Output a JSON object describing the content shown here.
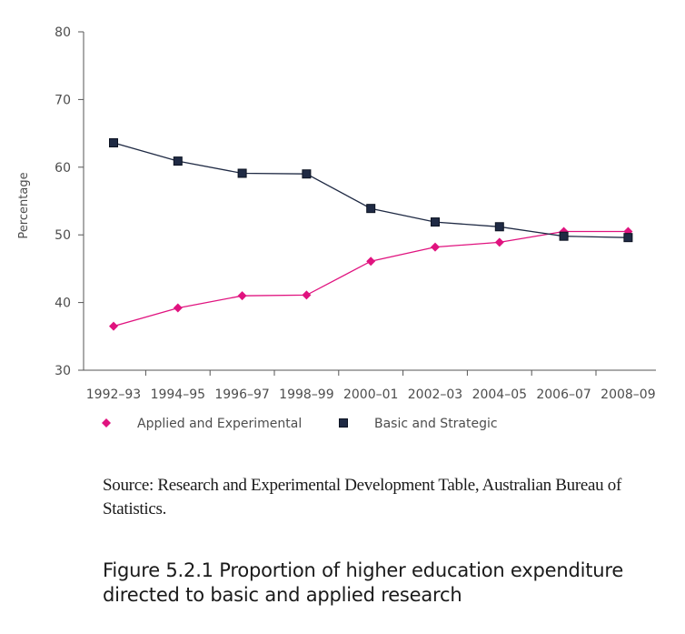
{
  "chart_data": {
    "type": "line",
    "title": "",
    "xlabel": "",
    "ylabel": "Percentage",
    "ylim": [
      30,
      80
    ],
    "yticks": [
      30,
      40,
      50,
      60,
      70,
      80
    ],
    "categories": [
      "1992–93",
      "1994–95",
      "1996–97",
      "1998–99",
      "2000–01",
      "2002–03",
      "2004–05",
      "2006–07",
      "2008–09"
    ],
    "series": [
      {
        "name": "Applied and Experimental",
        "color": "#e0137f",
        "marker": "diamond",
        "values": [
          36.5,
          39.2,
          41.0,
          41.1,
          46.1,
          48.2,
          48.9,
          50.5,
          50.5
        ]
      },
      {
        "name": "Basic and Strategic",
        "color": "#1f2a44",
        "marker": "square",
        "values": [
          63.6,
          60.9,
          59.1,
          59.0,
          53.9,
          51.9,
          51.2,
          49.8,
          49.6
        ]
      }
    ],
    "grid": false,
    "legend": "bottom"
  },
  "source_text": "Source: Research and Experimental Development Table, Australian Bureau of Statistics.",
  "caption_text": "Figure 5.2.1 Proportion of higher education expenditure directed to basic and applied research"
}
